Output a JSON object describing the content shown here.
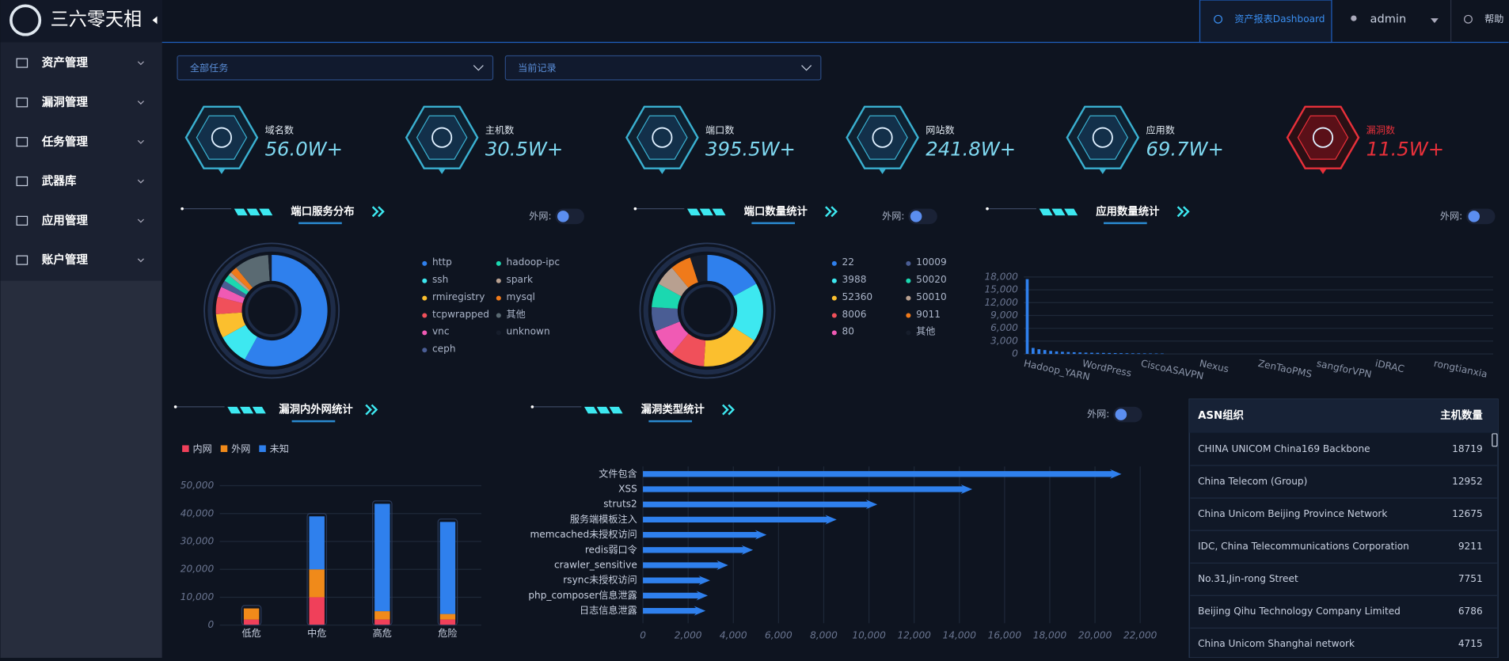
{
  "sidebar": {
    "brand": "三六零天相",
    "menu": [
      "资产管理",
      "漏洞管理",
      "任务管理",
      "武器库",
      "应用管理",
      "账户管理"
    ]
  },
  "topbar": {
    "dashboard": "资产报表Dashboard",
    "user": "admin",
    "help": "帮助"
  },
  "filters": [
    "全部任务",
    "当前记录"
  ],
  "stats": [
    {
      "label": "域名数",
      "value": "56.0W+",
      "color": "#7fd8f0"
    },
    {
      "label": "主机数",
      "value": "30.5W+",
      "color": "#7fd8f0"
    },
    {
      "label": "端口数",
      "value": "395.5W+",
      "color": "#7fd8f0"
    },
    {
      "label": "网站数",
      "value": "241.8W+",
      "color": "#7fd8f0"
    },
    {
      "label": "应用数",
      "value": "69.7W+",
      "color": "#7fd8f0"
    },
    {
      "label": "漏洞数",
      "value": "11.5W+",
      "color": "#e8303a"
    }
  ],
  "charts": [
    {
      "type": "pie",
      "title": "端口服务分布",
      "switch": "外网:",
      "categories": [
        "http",
        "ssh",
        "rmiregistry",
        "tcpwrapped",
        "vnc",
        "ceph",
        "hadoop-ipc",
        "spark",
        "mysql",
        "其他",
        "unknown"
      ],
      "values": [
        58,
        9,
        7,
        5,
        3,
        2,
        2,
        1,
        2,
        10,
        1
      ],
      "colors": [
        "#2f80ed",
        "#3de8f0",
        "#fbbf2e",
        "#f0505a",
        "#f05ab4",
        "#4a5d94",
        "#1bd8b0",
        "#b8a090",
        "#f07a1a",
        "#5a6a72",
        "#161d2b"
      ]
    },
    {
      "type": "pie",
      "title": "端口数量统计",
      "switch": "外网:",
      "categories": [
        "22",
        "3988",
        "52360",
        "8006",
        "80",
        "10009",
        "50020",
        "50010",
        "9011",
        "其他"
      ],
      "values": [
        17,
        17,
        17,
        10,
        8,
        7,
        7,
        6,
        6,
        5
      ],
      "colors": [
        "#2f80ed",
        "#3de8f0",
        "#fbbf2e",
        "#f0505a",
        "#f05ab4",
        "#4a5d94",
        "#1bd8b0",
        "#b8a090",
        "#f07a1a",
        "#161d2b"
      ]
    },
    {
      "type": "bar",
      "title": "应用数量统计",
      "switch": "外网:",
      "categories": [
        "Hadoop_YARN",
        null,
        null,
        "WordPress",
        null,
        null,
        "CiscoASAVPN",
        null,
        null,
        "Nexus",
        null,
        null,
        "ZenTaoPMS",
        null,
        null,
        "sangforVPN",
        null,
        null,
        "iDRAC",
        null,
        null,
        "rongtianxia",
        null,
        null
      ],
      "values": [
        17500,
        1400,
        1100,
        900,
        700,
        600,
        500,
        450,
        400,
        350,
        300,
        280,
        260,
        240,
        220,
        200,
        180,
        160,
        150,
        140,
        130,
        120,
        110,
        100
      ],
      "color": "#2f80ed",
      "ylim": [
        0,
        18000
      ],
      "yticks": [
        0,
        {
          "value": 3000,
          "label": "3,000"
        },
        {
          "value": 6000,
          "label": "6,000"
        },
        {
          "value": 9000,
          "label": "9,000"
        },
        {
          "value": 12000,
          "label": "12,000"
        },
        {
          "value": 15000,
          "label": "15,000"
        },
        {
          "value": 18000,
          "label": "18,000"
        }
      ],
      "grid": true
    },
    {
      "type": "stacked_bar",
      "title": "漏洞内外网统计",
      "categories": [
        "低危",
        "中危",
        "高危",
        "危险"
      ],
      "series": [
        {
          "name": "内网",
          "color": "#f0405a",
          "values": [
            2000,
            10000,
            2000,
            2000
          ]
        },
        {
          "name": "外网",
          "color": "#f08a1a",
          "values": [
            4000,
            10000,
            3000,
            2000
          ]
        },
        {
          "name": "未知",
          "color": "#2f80ed",
          "values": [
            0,
            19000,
            38500,
            33000
          ]
        }
      ],
      "ylim": [
        0,
        50000
      ],
      "yticks": [
        0,
        {
          "value": 10000,
          "label": "10,000"
        },
        {
          "value": 20000,
          "label": "20,000"
        },
        {
          "value": 30000,
          "label": "30,000"
        },
        {
          "value": 40000,
          "label": "40,000"
        },
        {
          "value": 50000,
          "label": "50,000"
        }
      ],
      "grid": true
    },
    {
      "type": "hbar",
      "title": "漏洞类型统计",
      "switch": "外网:",
      "categories": [
        "文件包含",
        "XSS",
        "struts2",
        "服务端模板注入",
        "memcached未授权访问",
        "redis弱口令",
        "crawler_sensitive",
        "rsync未授权访问",
        "php_composer信息泄露",
        "日志信息泄露"
      ],
      "values": [
        21000,
        14400,
        10200,
        8400,
        5300,
        4700,
        3600,
        2800,
        2700,
        2600
      ],
      "color": "#2f80ed",
      "xlim": [
        0,
        22000
      ],
      "xticks": [
        0,
        {
          "value": 2000,
          "label": "2,000"
        },
        {
          "value": 4000,
          "label": "4,000"
        },
        {
          "value": 6000,
          "label": "6,000"
        },
        {
          "value": 8000,
          "label": "8,000"
        },
        {
          "value": 10000,
          "label": "10,000"
        },
        {
          "value": 12000,
          "label": "12,000"
        },
        {
          "value": 14000,
          "label": "14,000"
        },
        {
          "value": 16000,
          "label": "16,000"
        },
        {
          "value": 18000,
          "label": "18,000"
        },
        {
          "value": 20000,
          "label": "20,000"
        },
        {
          "value": 22000,
          "label": "22,000"
        }
      ],
      "grid": true
    }
  ],
  "asn": {
    "headers": [
      "ASN组织",
      "主机数量"
    ],
    "rows": [
      [
        "CHINA UNICOM China169 Backbone",
        "18719"
      ],
      [
        "China Telecom (Group)",
        "12952"
      ],
      [
        "China Unicom Beijing Province Network",
        "12675"
      ],
      [
        "IDC, China Telecommunications Corporation",
        "9211"
      ],
      [
        "No.31,Jin-rong Street",
        "7751"
      ],
      [
        "Beijing Qihu Technology Company Limited",
        "6786"
      ],
      [
        "China Unicom Shanghai network",
        "4715"
      ]
    ]
  }
}
